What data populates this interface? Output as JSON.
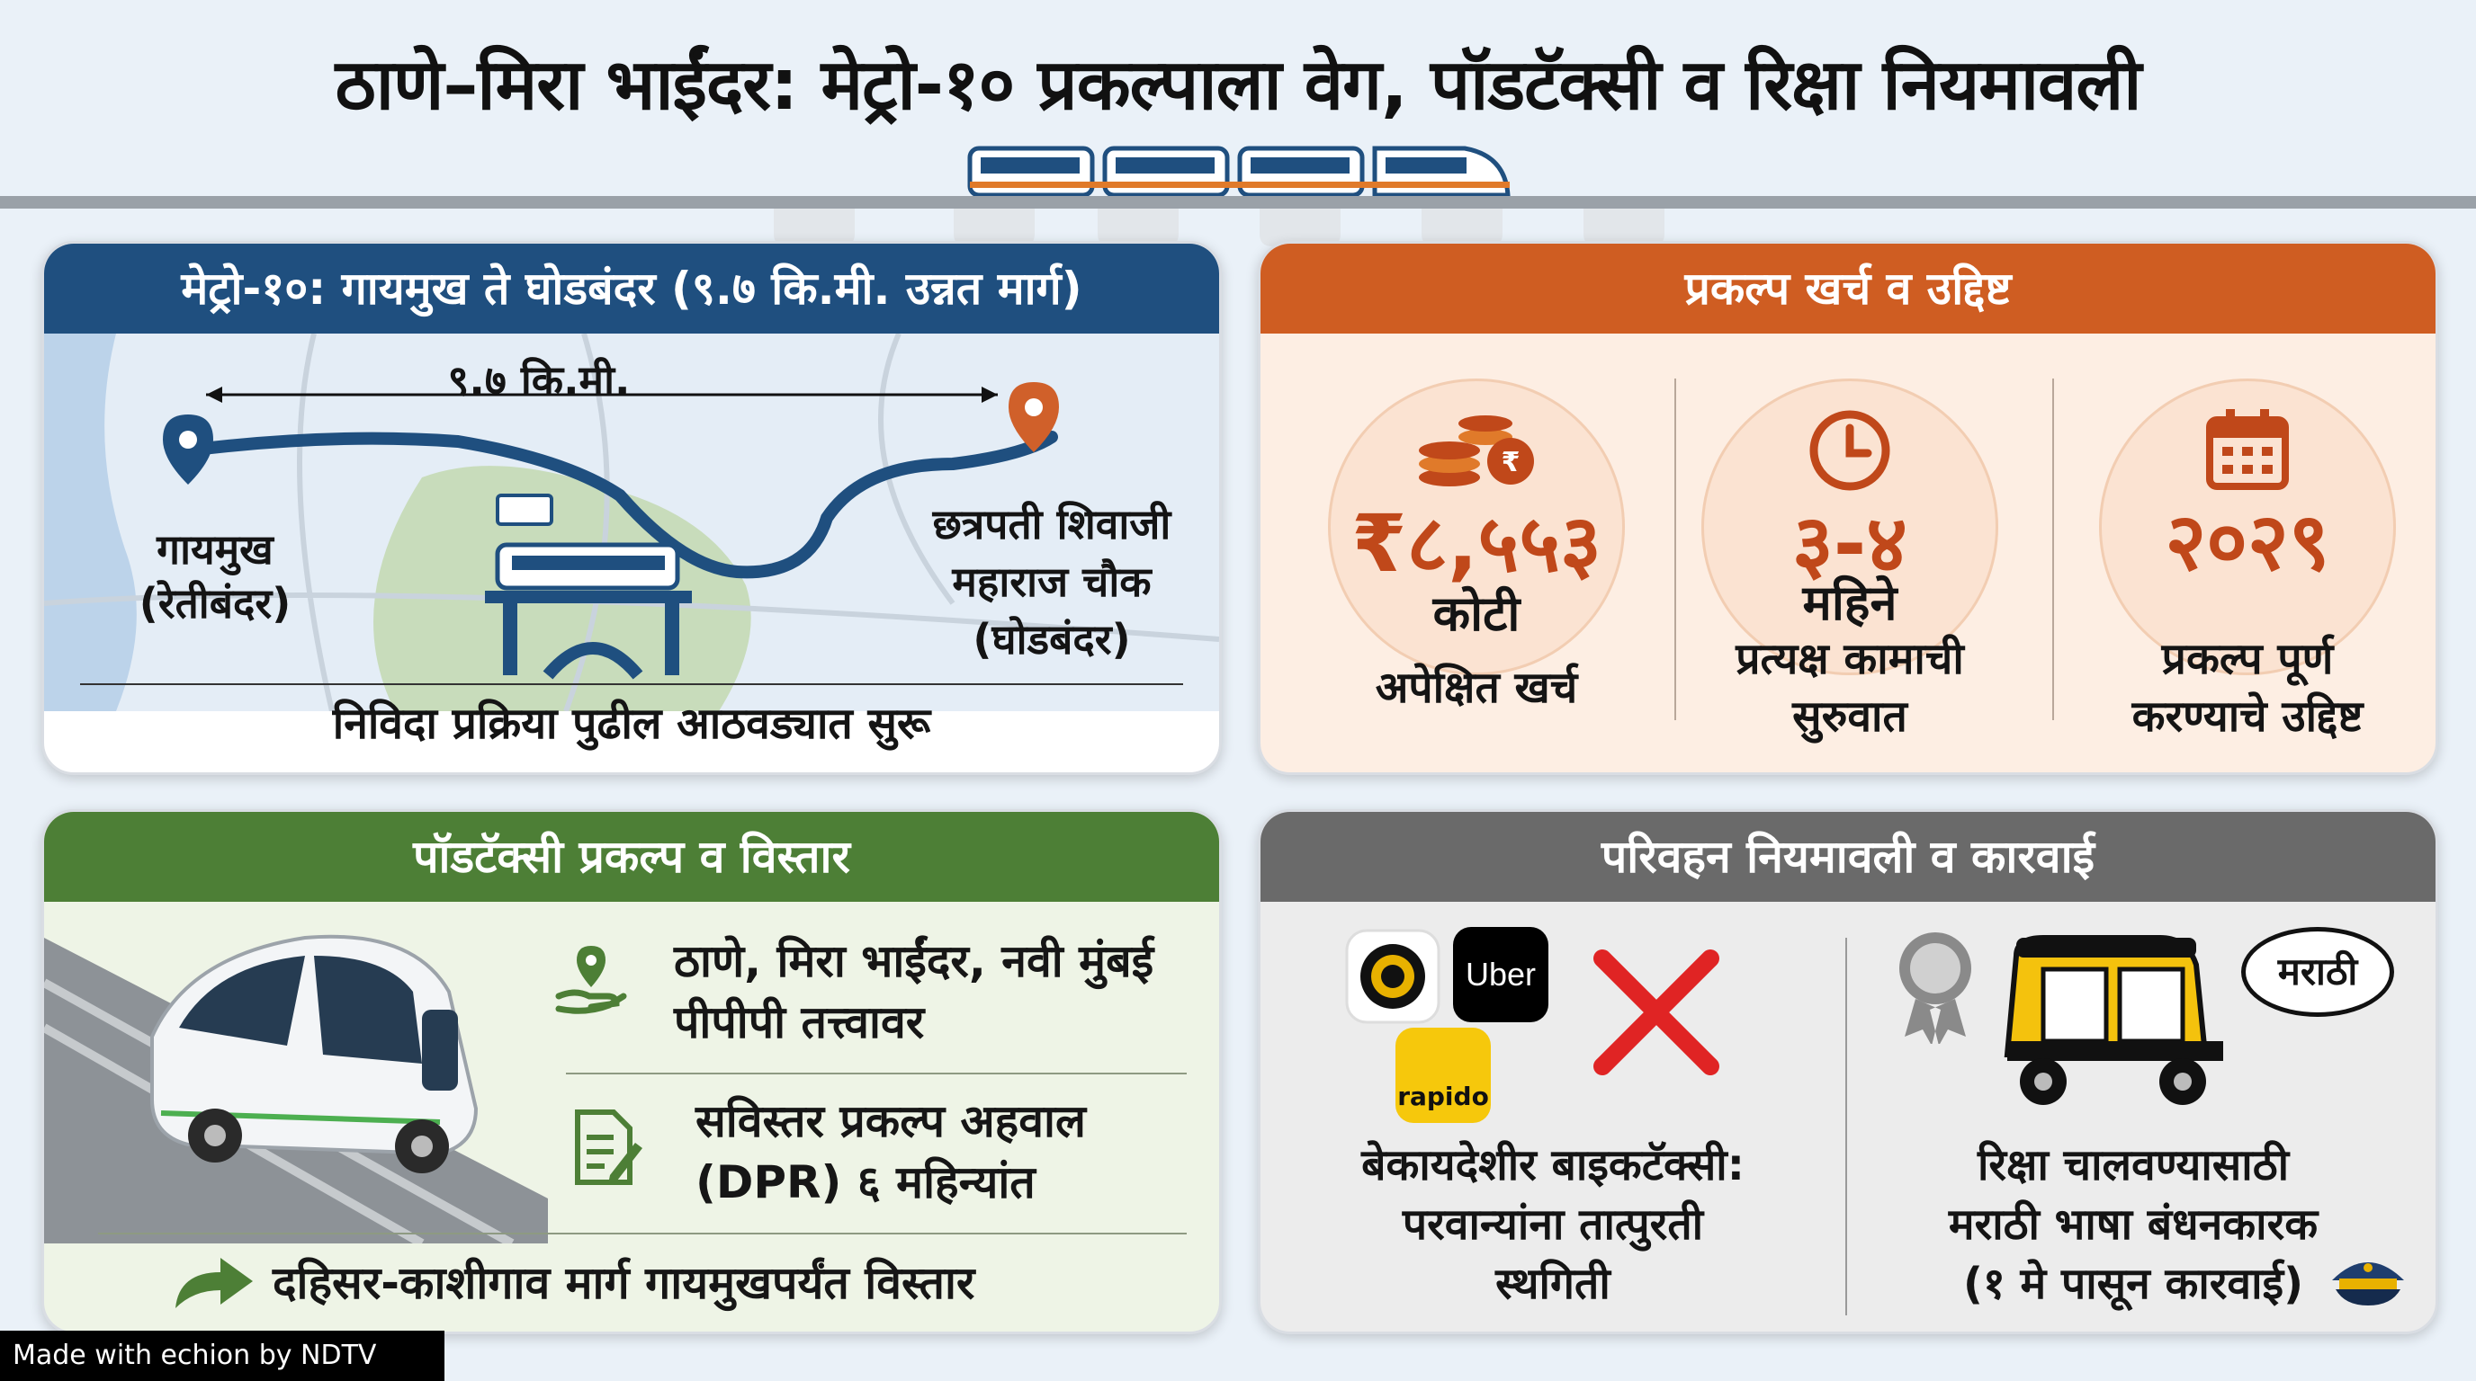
{
  "title": "ठाणे–मिरा भाईंदर: मेट्रो-१० प्रकल्पाला वेग, पॉडटॅक्सी व रिक्षा नियमावली",
  "colors": {
    "blue": "#1f4f7f",
    "orange": "#cf5d22",
    "green": "#4d7f36",
    "gray": "#6a6a6a",
    "accent": "#c0481a"
  },
  "metro": {
    "header": "मेट्रो-१०: गायमुख ते घोडबंदर (९.७ कि.मी. उन्नत मार्ग)",
    "distance": "९.७ कि.मी.",
    "start_line1": "गायमुख",
    "start_line2": "(रेतीबंदर)",
    "end_line1": "छत्रपती शिवाजी",
    "end_line2": "महाराज चौक",
    "end_line3": "(घोडबंदर)",
    "footer": "निविदा प्रक्रिया पुढील आठवड्यात सुरू",
    "icons": [
      "location-pin-icon",
      "metro-train-icon"
    ]
  },
  "cost": {
    "header": "प्रकल्प खर्च व उद्दिष्ट",
    "items": [
      {
        "icon": "coins-rupee-icon",
        "value": "₹८,५५३",
        "unit": "कोटी",
        "label_line1": "अपेक्षित खर्च",
        "label_line2": ""
      },
      {
        "icon": "clock-icon",
        "value": "३-४",
        "unit": "महिने",
        "label_line1": "प्रत्यक्ष कामाची",
        "label_line2": "सुरुवात"
      },
      {
        "icon": "calendar-icon",
        "value": "२०२९",
        "unit": "",
        "label_line1": "प्रकल्प पूर्ण",
        "label_line2": "करण्याचे उद्दिष्ट"
      }
    ]
  },
  "pod": {
    "header": "पॉडटॅक्सी प्रकल्प व विस्तार",
    "row1_line1": "ठाणे, मिरा भाईंदर, नवी मुंबई",
    "row1_line2": "पीपीपी तत्त्वावर",
    "row2_line1": "सविस्तर प्रकल्प अहवाल",
    "row2_line2": "(DPR) ६ महिन्यांत",
    "row3": "दहिसर-काशीगाव मार्ग गायमुखपर्यंत विस्तार",
    "icons": [
      "location-hand-icon",
      "document-pen-icon",
      "arrow-right-icon",
      "pod-taxi-icon"
    ]
  },
  "transport": {
    "header": "परिवहन नियमावली व कारवाई",
    "uber_logo": "Uber",
    "rapido_logo": "rapido",
    "left_line1": "बेकायदेशीर बाइकटॅक्सी:",
    "left_line2": "परवान्यांना तात्पुरती",
    "left_line3": "स्थगिती",
    "bubble": "मराठी",
    "right_line1": "रिक्षा चालवण्यासाठी",
    "right_line2": "मराठी भाषा बंधनकारक",
    "right_line3": "(१ मे पासून कारवाई)",
    "icons": [
      "ola-logo-icon",
      "cross-icon",
      "badge-icon",
      "auto-rickshaw-icon",
      "police-cap-icon"
    ]
  },
  "watermark": "Made with echion by NDTV"
}
